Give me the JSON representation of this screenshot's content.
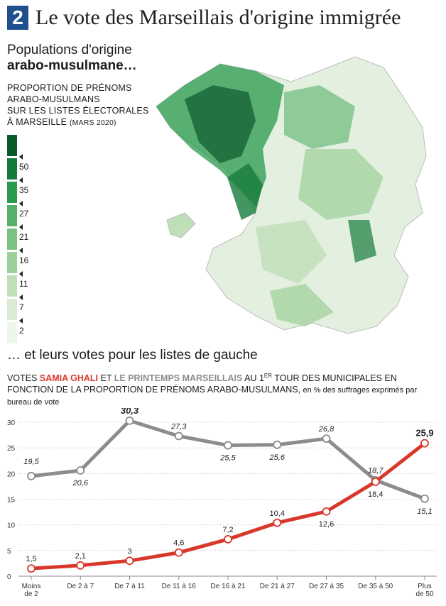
{
  "header": {
    "number": "2",
    "title": "Le vote des Marseillais d'origine immigrée"
  },
  "map_section": {
    "subtitle_line1": "Populations d'origine",
    "subtitle_line2": "arabo-musulmane…",
    "desc_line1": "PROPORTION DE PRÉNOMS",
    "desc_line2": "ARABO-MUSULMANS",
    "desc_line3": "SUR LES LISTES ÉLECTORALES",
    "desc_line4": "À MARSEILLE",
    "desc_date": "(MARS 2020)",
    "legend": [
      {
        "label": "50",
        "color": "#0b5a2c"
      },
      {
        "label": "35",
        "color": "#167a3b"
      },
      {
        "label": "27",
        "color": "#2a9a4e"
      },
      {
        "label": "21",
        "color": "#56b06a"
      },
      {
        "label": "16",
        "color": "#7cc082"
      },
      {
        "label": "11",
        "color": "#9ccf99"
      },
      {
        "label": "7",
        "color": "#bedfb8"
      },
      {
        "label": "2",
        "color": "#d9ebd3"
      },
      {
        "label": "",
        "color": "#eef6ea"
      }
    ]
  },
  "chart_section": {
    "subtitle": "… et leurs votes pour les listes de gauche",
    "desc_prefix": "VOTES",
    "desc_ghali": "SAMIA GHALI",
    "desc_and": "ET",
    "desc_printemps": "LE PRINTEMPS MARSEILLAIS",
    "desc_mid": "AU 1",
    "desc_sup": "ER",
    "desc_rest": "TOUR DES MUNICIPALES EN FONCTION DE LA PROPORTION DE PRÉNOMS ARABO-MUSULMANS,",
    "desc_small": "en % des suffrages exprimés par bureau de vote"
  },
  "chart_data": {
    "type": "line",
    "categories": [
      "Moins\nde 2",
      "De 2 à 7",
      "De 7 à 11",
      "De 11 à 16",
      "De 16 à 21",
      "De 21 à 27",
      "De 27 à 35",
      "De 35 à 50",
      "Plus\nde 50"
    ],
    "ylim": [
      0,
      30
    ],
    "yticks": [
      0,
      5,
      10,
      15,
      20,
      25,
      30
    ],
    "grid": true,
    "series": [
      {
        "name": "Le Printemps marseillais",
        "color": "#8c8c8c",
        "values": [
          19.5,
          20.6,
          30.3,
          27.3,
          25.5,
          25.6,
          26.8,
          18.7,
          15.1
        ],
        "labels": [
          "19,5",
          "20,6",
          "30,3",
          "27,3",
          "25,5",
          "25,6",
          "26,8",
          "18,7",
          "15,1"
        ]
      },
      {
        "name": "Samia Ghali",
        "color": "#d8382b",
        "values": [
          1.5,
          2.1,
          3,
          4.6,
          7.2,
          10.4,
          12.6,
          18.4,
          25.9
        ],
        "labels": [
          "1,5",
          "2,1",
          "3",
          "4,6",
          "7,2",
          "10,4",
          "12,6",
          "18,4",
          "25,9"
        ]
      }
    ]
  }
}
